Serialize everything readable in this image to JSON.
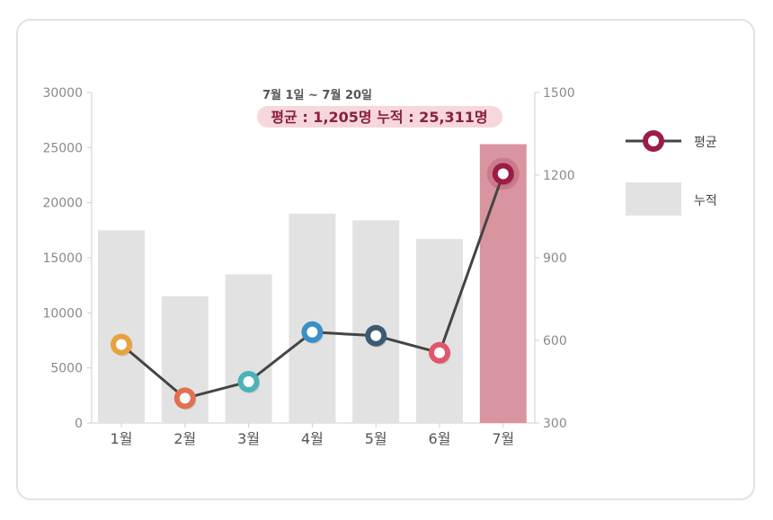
{
  "chart_data": {
    "type": "bar",
    "categories": [
      "1월",
      "2월",
      "3월",
      "4월",
      "5월",
      "6월",
      "7월"
    ],
    "series": [
      {
        "name": "누적",
        "type": "bar",
        "axis": "left",
        "values": [
          17500,
          11500,
          13500,
          19000,
          18400,
          16700,
          25311
        ]
      },
      {
        "name": "평균",
        "type": "line",
        "axis": "right",
        "values": [
          585,
          390,
          450,
          630,
          617,
          555,
          1205
        ]
      }
    ],
    "ylim": [
      0,
      30000
    ],
    "yticks": [
      0,
      5000,
      10000,
      15000,
      20000,
      25000,
      30000
    ],
    "y2lim": [
      300,
      1500
    ],
    "y2ticks": [
      300,
      600,
      900,
      1200,
      1500
    ],
    "annotation": {
      "line1": "7월 1일 ~ 7월 20일",
      "line2": "평균 : 1,205명  누적 : 25,311명"
    },
    "legend_position": "right",
    "colors": {
      "bar": "#e2e2e2",
      "bar_highlight": "#d9959f",
      "line": "#444444",
      "markers": [
        "#e8a23e",
        "#e0704f",
        "#4bb2b8",
        "#3a8fc7",
        "#3d5a73",
        "#e0566c",
        "#9b1c44"
      ],
      "annotation_bg": "#f6d7db",
      "legend_marker": "#9b1c44"
    },
    "highlight_index": 6
  }
}
